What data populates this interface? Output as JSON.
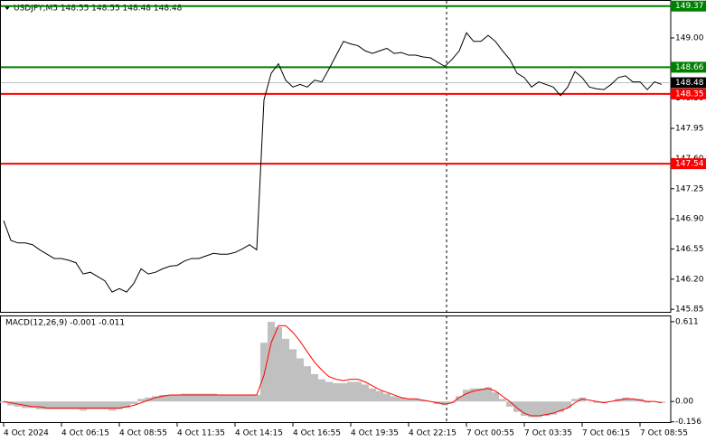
{
  "chart_data": [
    {
      "type": "line",
      "title": "USDJPY,M5  148.55 148.55 148.48 148.48",
      "color": "#000000",
      "values": [
        146.88,
        146.65,
        146.62,
        146.62,
        146.6,
        146.54,
        146.49,
        146.44,
        146.44,
        146.42,
        146.39,
        146.26,
        146.28,
        146.23,
        146.18,
        146.05,
        146.09,
        146.05,
        146.15,
        146.32,
        146.26,
        146.28,
        146.32,
        146.35,
        146.36,
        146.41,
        146.44,
        146.44,
        146.47,
        146.5,
        146.49,
        146.49,
        146.51,
        146.55,
        146.6,
        146.54,
        148.28,
        148.59,
        148.7,
        148.51,
        148.43,
        148.46,
        148.43,
        148.51,
        148.49,
        148.64,
        148.8,
        148.96,
        148.93,
        148.91,
        148.85,
        148.82,
        148.85,
        148.88,
        148.82,
        148.83,
        148.8,
        148.8,
        148.78,
        148.77,
        148.72,
        148.67,
        148.75,
        148.85,
        149.06,
        148.96,
        148.96,
        149.03,
        148.96,
        148.85,
        148.75,
        148.59,
        148.54,
        148.43,
        148.49,
        148.46,
        148.43,
        148.33,
        148.43,
        148.61,
        148.54,
        148.43,
        148.41,
        148.4,
        148.46,
        148.54,
        148.56,
        148.49,
        148.49,
        148.4,
        148.49,
        148.46
      ],
      "ylim": [
        145.81,
        149.43
      ],
      "yticks": [
        {
          "value": 149.0,
          "label": "149.00"
        },
        {
          "value": 148.65,
          "label": "148.65"
        },
        {
          "value": 148.3,
          "label": "148.30"
        },
        {
          "value": 147.95,
          "label": "147.95"
        },
        {
          "value": 147.6,
          "label": "147.60"
        },
        {
          "value": 147.25,
          "label": "147.25"
        },
        {
          "value": 146.9,
          "label": "146.90"
        },
        {
          "value": 146.55,
          "label": "146.55"
        },
        {
          "value": 146.2,
          "label": "146.20"
        },
        {
          "value": 145.85,
          "label": "145.85"
        }
      ],
      "levels": [
        {
          "value": 149.37,
          "color": "#008000"
        },
        {
          "value": 148.66,
          "color": "#008000"
        },
        {
          "value": 148.35,
          "color": "#ff0000"
        },
        {
          "value": 147.54,
          "color": "#ff0000"
        }
      ],
      "current_price": {
        "value": 148.48,
        "color": "#000000"
      }
    },
    {
      "type": "macd",
      "title": "MACD(12,26,9) -0.001 -0.011",
      "categories": [
        "4 Oct 2024",
        null,
        null,
        null,
        null,
        null,
        null,
        null,
        "4 Oct 06:15",
        null,
        null,
        null,
        null,
        null,
        null,
        null,
        "4 Oct 08:55",
        null,
        null,
        null,
        null,
        null,
        null,
        null,
        "4 Oct 11:35",
        null,
        null,
        null,
        null,
        null,
        null,
        null,
        "4 Oct 14:15",
        null,
        null,
        null,
        null,
        null,
        null,
        null,
        "4 Oct 16:55",
        null,
        null,
        null,
        null,
        null,
        null,
        null,
        "4 Oct 19:35",
        null,
        null,
        null,
        null,
        null,
        null,
        null,
        "4 Oct 22:15",
        null,
        null,
        null,
        null,
        null,
        null,
        null,
        "7 Oct 00:55",
        null,
        null,
        null,
        null,
        null,
        null,
        null,
        "7 Oct 03:35",
        null,
        null,
        null,
        null,
        null,
        null,
        null,
        "7 Oct 06:15",
        null,
        null,
        null,
        null,
        null,
        null,
        null,
        "7 Oct 08:55",
        null,
        null,
        null
      ],
      "histogram": {
        "color": "#c0c0c0",
        "values": [
          -0.01,
          -0.03,
          -0.04,
          -0.05,
          -0.05,
          -0.06,
          -0.06,
          -0.06,
          -0.06,
          -0.06,
          -0.06,
          -0.07,
          -0.06,
          -0.06,
          -0.06,
          -0.07,
          -0.06,
          -0.05,
          -0.02,
          0.02,
          0.03,
          0.04,
          0.05,
          0.05,
          0.05,
          0.06,
          0.06,
          0.06,
          0.06,
          0.06,
          0.05,
          0.05,
          0.05,
          0.05,
          0.05,
          0.05,
          0.45,
          0.61,
          0.57,
          0.48,
          0.4,
          0.33,
          0.27,
          0.21,
          0.17,
          0.15,
          0.14,
          0.14,
          0.15,
          0.15,
          0.13,
          0.1,
          0.08,
          0.06,
          0.04,
          0.03,
          0.02,
          0.02,
          0.01,
          0.0,
          -0.02,
          -0.03,
          -0.01,
          0.04,
          0.09,
          0.1,
          0.1,
          0.11,
          0.07,
          0.02,
          -0.04,
          -0.08,
          -0.11,
          -0.12,
          -0.12,
          -0.11,
          -0.1,
          -0.08,
          -0.05,
          0.02,
          0.03,
          0.0,
          -0.01,
          -0.01,
          0.0,
          0.02,
          0.03,
          0.02,
          0.02,
          -0.01,
          0.0,
          -0.01
        ]
      },
      "signal": {
        "color": "#ff0000",
        "values": [
          0.0,
          -0.01,
          -0.02,
          -0.03,
          -0.04,
          -0.04,
          -0.05,
          -0.05,
          -0.05,
          -0.05,
          -0.05,
          -0.05,
          -0.05,
          -0.05,
          -0.05,
          -0.05,
          -0.05,
          -0.04,
          -0.03,
          -0.01,
          0.01,
          0.03,
          0.04,
          0.05,
          0.05,
          0.05,
          0.05,
          0.05,
          0.05,
          0.05,
          0.05,
          0.05,
          0.05,
          0.05,
          0.05,
          0.05,
          0.2,
          0.45,
          0.58,
          0.58,
          0.53,
          0.46,
          0.38,
          0.3,
          0.24,
          0.19,
          0.17,
          0.16,
          0.17,
          0.17,
          0.15,
          0.12,
          0.09,
          0.07,
          0.05,
          0.03,
          0.02,
          0.02,
          0.01,
          0.0,
          -0.01,
          -0.02,
          -0.01,
          0.03,
          0.06,
          0.08,
          0.09,
          0.1,
          0.08,
          0.04,
          0.0,
          -0.05,
          -0.09,
          -0.11,
          -0.11,
          -0.1,
          -0.09,
          -0.07,
          -0.05,
          -0.01,
          0.02,
          0.01,
          0.0,
          -0.01,
          0.0,
          0.01,
          0.02,
          0.02,
          0.01,
          0.0,
          0.0,
          -0.01
        ]
      },
      "ylim": [
        -0.165,
        0.652
      ],
      "yticks": [
        0.611,
        {
          "value": 0,
          "label": "0.00"
        },
        -0.156
      ]
    }
  ]
}
